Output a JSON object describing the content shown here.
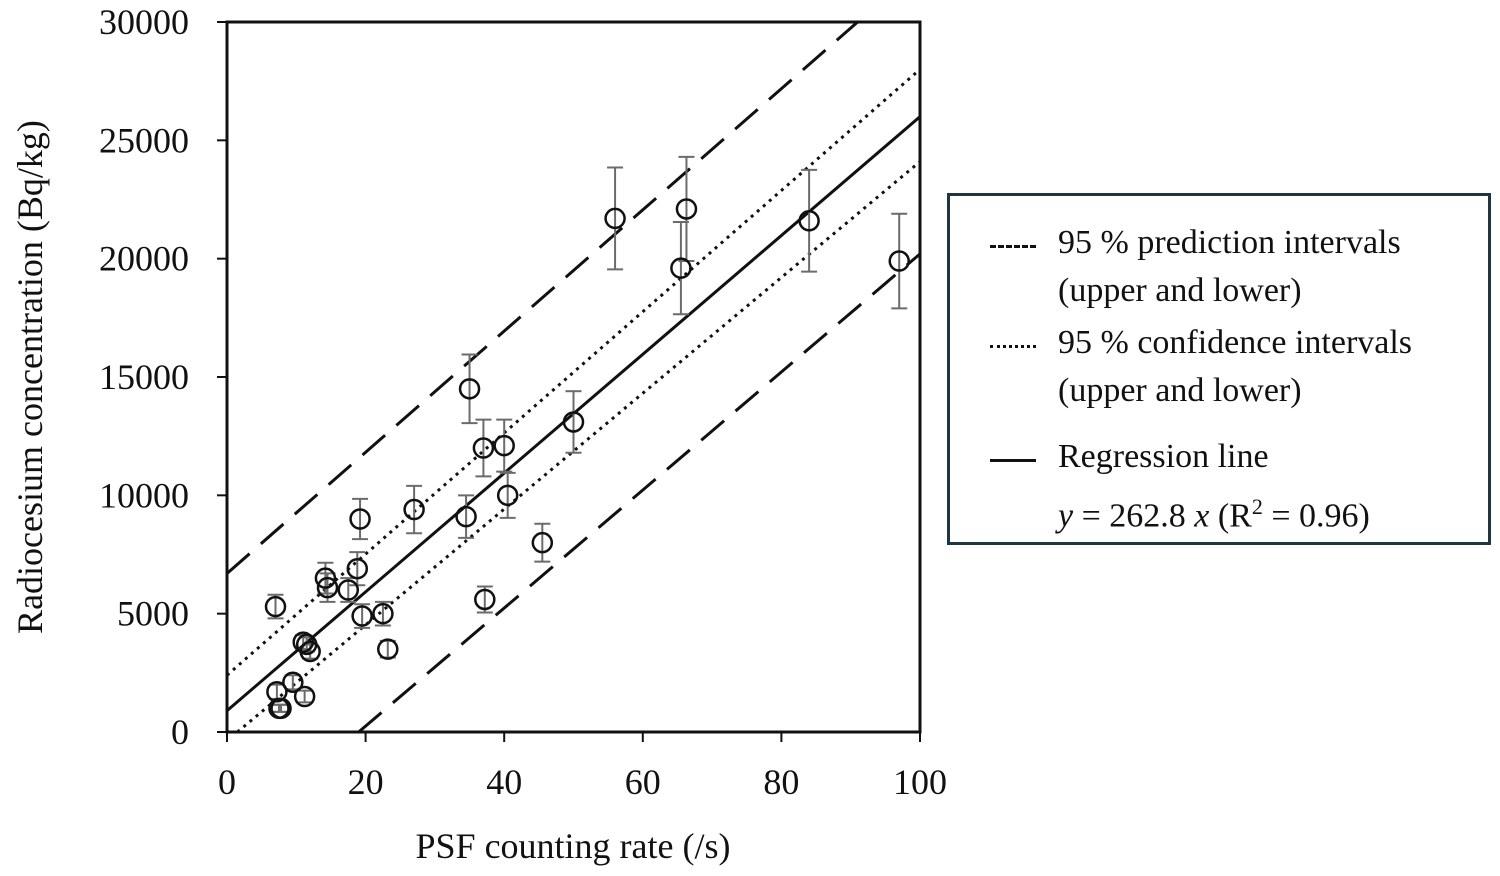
{
  "chart_data": {
    "type": "scatter",
    "xlabel": "PSF counting rate (/s)",
    "ylabel": "Radiocesium concentration (Bq/kg)",
    "xlim": [
      0,
      100
    ],
    "ylim": [
      0,
      30000
    ],
    "xticks": [
      "0",
      "20",
      "40",
      "60",
      "80",
      "100"
    ],
    "yticks": [
      "0",
      "5000",
      "10000",
      "15000",
      "20000",
      "25000",
      "30000"
    ],
    "grid": false,
    "legend_position": "right",
    "series": [
      {
        "name": "",
        "marker": "open-circle",
        "points": [
          {
            "x": 7,
            "y": 5300,
            "err": 500
          },
          {
            "x": 7.2,
            "y": 1700,
            "err": 300
          },
          {
            "x": 7.5,
            "y": 1000,
            "err": 150
          },
          {
            "x": 7.8,
            "y": 1000,
            "err": 150
          },
          {
            "x": 9.5,
            "y": 2100,
            "err": 300
          },
          {
            "x": 11,
            "y": 3800,
            "err": 300
          },
          {
            "x": 11.2,
            "y": 1500,
            "err": 250
          },
          {
            "x": 11.5,
            "y": 3700,
            "err": 300
          },
          {
            "x": 12,
            "y": 3400,
            "err": 300
          },
          {
            "x": 14.2,
            "y": 6500,
            "err": 650
          },
          {
            "x": 14.5,
            "y": 6100,
            "err": 600
          },
          {
            "x": 17.5,
            "y": 6000,
            "err": 500
          },
          {
            "x": 18.8,
            "y": 6900,
            "err": 700
          },
          {
            "x": 19.2,
            "y": 9000,
            "err": 850
          },
          {
            "x": 19.5,
            "y": 4900,
            "err": 500
          },
          {
            "x": 22.5,
            "y": 5000,
            "err": 500
          },
          {
            "x": 23.2,
            "y": 3500,
            "err": 350
          },
          {
            "x": 27,
            "y": 9400,
            "err": 1000
          },
          {
            "x": 34.5,
            "y": 9100,
            "err": 900
          },
          {
            "x": 35,
            "y": 14500,
            "err": 1450
          },
          {
            "x": 37,
            "y": 12000,
            "err": 1200
          },
          {
            "x": 37.2,
            "y": 5600,
            "err": 550
          },
          {
            "x": 40,
            "y": 12100,
            "err": 1100
          },
          {
            "x": 40.5,
            "y": 10000,
            "err": 950
          },
          {
            "x": 45.5,
            "y": 8000,
            "err": 800
          },
          {
            "x": 50,
            "y": 13100,
            "err": 1300
          },
          {
            "x": 56,
            "y": 21700,
            "err": 2150
          },
          {
            "x": 65.5,
            "y": 19600,
            "err": 1950
          },
          {
            "x": 66.3,
            "y": 22100,
            "err": 2200
          },
          {
            "x": 84,
            "y": 21600,
            "err": 2150
          },
          {
            "x": 97,
            "y": 19900,
            "err": 2000
          }
        ]
      }
    ],
    "lines": {
      "regression": {
        "x": [
          0,
          100
        ],
        "y": [
          900,
          26000
        ]
      },
      "confidence_upper": {
        "x": [
          0,
          100
        ],
        "y": [
          2400,
          28000
        ]
      },
      "confidence_lower": {
        "x": [
          1.5,
          100
        ],
        "y": [
          0,
          24100
        ]
      },
      "prediction_upper": {
        "x": [
          0,
          91
        ],
        "y": [
          6700,
          30000
        ]
      },
      "prediction_lower": {
        "x": [
          19,
          100
        ],
        "y": [
          0,
          20200
        ]
      }
    },
    "legend": [
      {
        "style": "dashed",
        "lines": [
          "95 % prediction intervals",
          "(upper and lower)"
        ]
      },
      {
        "style": "dotted",
        "lines": [
          "95 % confidence intervals",
          "(upper and lower)"
        ]
      },
      {
        "style": "solid",
        "lines": [
          "Regression line"
        ],
        "equation": {
          "y": "y",
          "mid": " = 262.8 ",
          "x": "x",
          "r_pre": " (R",
          "sup": "2",
          "r_post": " = 0.96)"
        }
      }
    ]
  }
}
